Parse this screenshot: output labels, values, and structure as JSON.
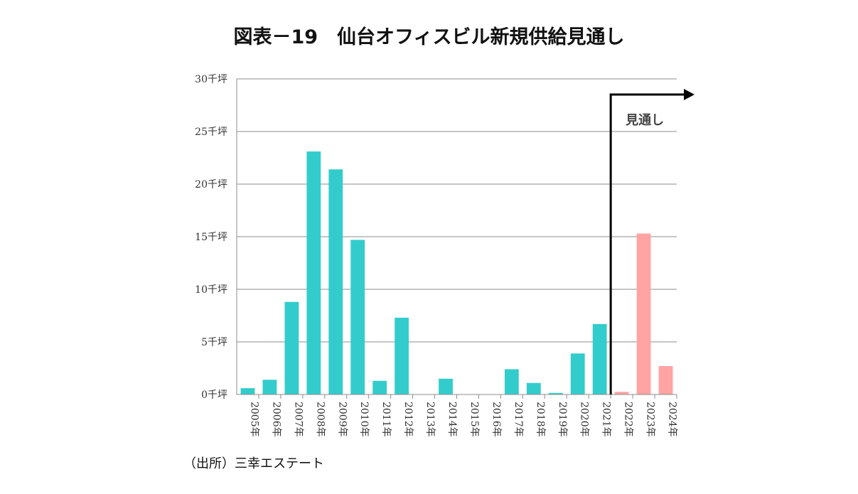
{
  "title": "図表－19　仙台オフィスビル新規供給見通し",
  "source": "（出所）三幸エステート",
  "chart_data": {
    "type": "bar",
    "title": "図表－19　仙台オフィスビル新規供給見通し",
    "xlabel": "",
    "ylabel": "",
    "ylim": [
      0,
      30
    ],
    "yticks": [
      "0千坪",
      "5千坪",
      "10千坪",
      "15千坪",
      "20千坪",
      "25千坪",
      "30千坪"
    ],
    "categories": [
      "2005年",
      "2006年",
      "2007年",
      "2008年",
      "2009年",
      "2010年",
      "2011年",
      "2012年",
      "2013年",
      "2014年",
      "2015年",
      "2016年",
      "2017年",
      "2018年",
      "2019年",
      "2020年",
      "2021年",
      "2022年",
      "2023年",
      "2024年"
    ],
    "values": [
      0.6,
      1.4,
      8.8,
      23.1,
      21.4,
      14.7,
      1.3,
      7.3,
      0,
      1.5,
      0,
      0,
      2.4,
      1.1,
      0.15,
      3.9,
      6.7,
      0.25,
      15.3,
      2.7
    ],
    "forecast_start": "2022年",
    "annotation": "見通し",
    "grid": true,
    "colors": {
      "actual": "#33cccc",
      "forecast": "#ffa3a3",
      "grid": "#8c8c8c",
      "arrow": "#000000"
    }
  }
}
